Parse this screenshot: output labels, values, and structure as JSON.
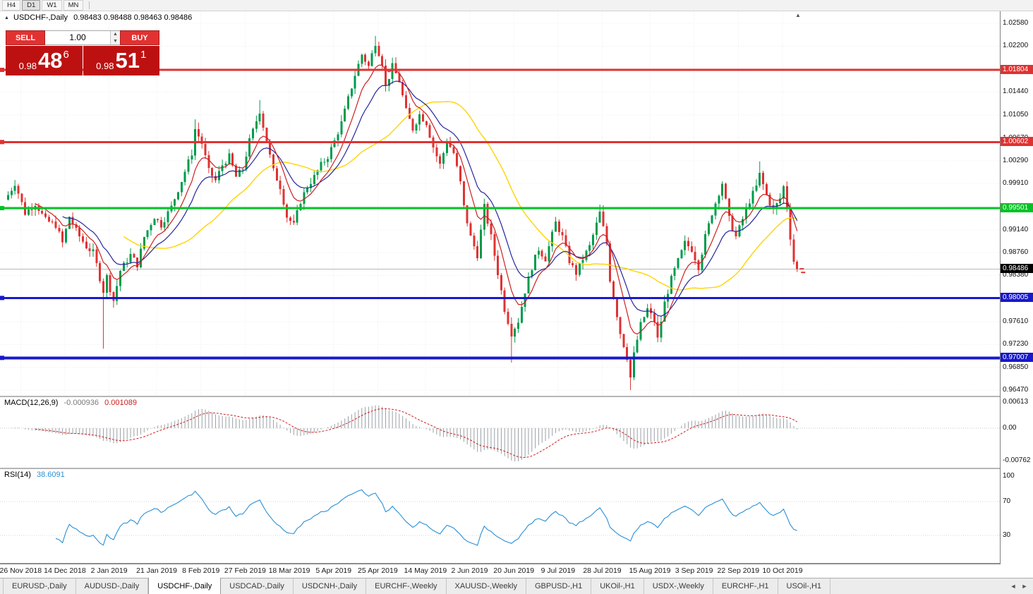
{
  "toolbar": {
    "timeframes": [
      {
        "label": "H4",
        "active": false
      },
      {
        "label": "D1",
        "active": true
      },
      {
        "label": "W1",
        "active": false
      },
      {
        "label": "MN",
        "active": false
      }
    ]
  },
  "chart": {
    "collapse_icon": "▲",
    "title": "USDCHF-,Daily",
    "ohlc": "0.98483 0.98488 0.98463 0.98486",
    "shift_marker": "▲"
  },
  "trade_panel": {
    "sell_label": "SELL",
    "buy_label": "BUY",
    "volume": "1.00",
    "spinner_up": "▲",
    "spinner_down": "▼",
    "sell_price": {
      "prefix": "0.98",
      "big": "48",
      "sup": "6"
    },
    "buy_price": {
      "prefix": "0.98",
      "big": "51",
      "sup": "1"
    }
  },
  "chart_data": {
    "type": "candlestick",
    "symbol": "USDCHF-",
    "period": "Daily",
    "colors": {
      "bull": "#009b4c",
      "bear": "#e03232",
      "ma_fast_red": "#cc2020",
      "ma_mid_blue": "#26269d",
      "ma_slow_yellow": "#ffd400",
      "macd_hist": "#9aa0a6",
      "macd_signal": "#cc2020",
      "rsi_line": "#2a8fd6",
      "bid_line": "#b8b8b8"
    },
    "y_axis": {
      "top": 1.0258,
      "bottom": 0.9647,
      "ticks": [
        "1.02580",
        "1.02200",
        "1.01440",
        "1.01050",
        "1.00670",
        "1.00290",
        "0.99910",
        "0.99140",
        "0.98760",
        "0.98380",
        "0.97610",
        "0.97230",
        "0.96850",
        "0.96470"
      ],
      "grid": [
        1.0258,
        1.022,
        1.0182,
        1.0144,
        1.0105,
        1.0067,
        1.0029,
        0.9991,
        0.9953,
        0.9914,
        0.9876,
        0.9838,
        0.98,
        0.9761,
        0.9723,
        0.9685,
        0.9647
      ]
    },
    "x_labels": [
      "26 Nov 2018",
      "14 Dec 2018",
      "2 Jan 2019",
      "21 Jan 2019",
      "8 Feb 2019",
      "27 Feb 2019",
      "18 Mar 2019",
      "5 Apr 2019",
      "25 Apr 2019",
      "14 May 2019",
      "2 Jun 2019",
      "20 Jun 2019",
      "9 Jul 2019",
      "28 Jul 2019",
      "15 Aug 2019",
      "3 Sep 2019",
      "22 Sep 2019",
      "10 Oct 2019"
    ],
    "candle_count": 233,
    "last_close": 0.98486,
    "price_path": [
      [
        0,
        0.9972
      ],
      [
        2,
        0.9992
      ],
      [
        5,
        0.9942
      ],
      [
        8,
        0.9958
      ],
      [
        11,
        0.993
      ],
      [
        14,
        0.9922
      ],
      [
        16,
        0.9892
      ],
      [
        18,
        0.9936
      ],
      [
        20,
        0.9912
      ],
      [
        23,
        0.9886
      ],
      [
        25,
        0.9876
      ],
      [
        26,
        0.9856
      ],
      [
        28,
        0.9812
      ],
      [
        29,
        0.9836
      ],
      [
        31,
        0.9796
      ],
      [
        33,
        0.9846
      ],
      [
        36,
        0.9872
      ],
      [
        38,
        0.9856
      ],
      [
        40,
        0.9902
      ],
      [
        43,
        0.9936
      ],
      [
        45,
        0.9922
      ],
      [
        48,
        0.9952
      ],
      [
        51,
        0.9996
      ],
      [
        54,
        1.0042
      ],
      [
        55,
        1.0082
      ],
      [
        57,
        1.0058
      ],
      [
        59,
        1.0012
      ],
      [
        61,
        0.9996
      ],
      [
        63,
        1.0022
      ],
      [
        65,
        1.0036
      ],
      [
        67,
        1.0002
      ],
      [
        69,
        1.0016
      ],
      [
        71,
        1.0062
      ],
      [
        74,
        1.0112
      ],
      [
        76,
        1.0062
      ],
      [
        78,
        1.0012
      ],
      [
        80,
        0.9986
      ],
      [
        82,
        0.9936
      ],
      [
        84,
        0.9922
      ],
      [
        86,
        0.9962
      ],
      [
        88,
        0.9986
      ],
      [
        90,
        1.0002
      ],
      [
        92,
        1.0022
      ],
      [
        94,
        1.0036
      ],
      [
        96,
        1.0062
      ],
      [
        98,
        1.0092
      ],
      [
        100,
        1.0132
      ],
      [
        102,
        1.0172
      ],
      [
        104,
        1.0206
      ],
      [
        106,
        1.0186
      ],
      [
        108,
        1.0226
      ],
      [
        110,
        1.0192
      ],
      [
        111,
        1.0152
      ],
      [
        113,
        1.0186
      ],
      [
        115,
        1.0162
      ],
      [
        117,
        1.0112
      ],
      [
        119,
        1.0082
      ],
      [
        121,
        1.0106
      ],
      [
        123,
        1.0092
      ],
      [
        125,
        1.0052
      ],
      [
        127,
        1.0022
      ],
      [
        129,
        1.0062
      ],
      [
        131,
        1.0042
      ],
      [
        133,
        0.9992
      ],
      [
        134,
        0.9952
      ],
      [
        136,
        0.9902
      ],
      [
        138,
        0.9872
      ],
      [
        140,
        0.9952
      ],
      [
        142,
        0.9902
      ],
      [
        144,
        0.9842
      ],
      [
        146,
        0.9782
      ],
      [
        148,
        0.9742
      ],
      [
        150,
        0.9762
      ],
      [
        152,
        0.9812
      ],
      [
        154,
        0.9852
      ],
      [
        156,
        0.9882
      ],
      [
        158,
        0.9866
      ],
      [
        161,
        0.9926
      ],
      [
        163,
        0.9902
      ],
      [
        165,
        0.9862
      ],
      [
        167,
        0.9842
      ],
      [
        169,
        0.9866
      ],
      [
        171,
        0.9886
      ],
      [
        174,
        0.9942
      ],
      [
        176,
        0.9892
      ],
      [
        177,
        0.9832
      ],
      [
        179,
        0.9772
      ],
      [
        180,
        0.9742
      ],
      [
        182,
        0.9702
      ],
      [
        183,
        0.9668
      ],
      [
        184,
        0.9706
      ],
      [
        186,
        0.9756
      ],
      [
        188,
        0.9782
      ],
      [
        190,
        0.9762
      ],
      [
        191,
        0.9732
      ],
      [
        193,
        0.9792
      ],
      [
        195,
        0.9832
      ],
      [
        197,
        0.9862
      ],
      [
        199,
        0.9892
      ],
      [
        201,
        0.9882
      ],
      [
        203,
        0.9852
      ],
      [
        205,
        0.9902
      ],
      [
        207,
        0.9942
      ],
      [
        209,
        0.9976
      ],
      [
        210,
        0.9992
      ],
      [
        212,
        0.9932
      ],
      [
        214,
        0.9902
      ],
      [
        216,
        0.9932
      ],
      [
        218,
        0.9962
      ],
      [
        220,
        0.9986
      ],
      [
        221,
        1.0006
      ],
      [
        223,
        0.9972
      ],
      [
        225,
        0.9946
      ],
      [
        227,
        0.9966
      ],
      [
        228,
        0.9986
      ],
      [
        229,
        0.9952
      ],
      [
        230,
        0.9902
      ],
      [
        231,
        0.9862
      ],
      [
        232,
        0.98486
      ]
    ],
    "wick_extremes": [
      [
        28,
        "low",
        0.9716
      ],
      [
        55,
        "high",
        1.0098
      ],
      [
        74,
        "high",
        1.013
      ],
      [
        108,
        "high",
        1.0237
      ],
      [
        148,
        "low",
        0.9693
      ],
      [
        174,
        "high",
        0.9956
      ],
      [
        183,
        "low",
        0.9647
      ],
      [
        221,
        "high",
        1.0028
      ]
    ],
    "h_lines": [
      {
        "price": 1.01804,
        "label": "1.01804",
        "color": "#e03232",
        "width": 3
      },
      {
        "price": 1.00602,
        "label": "1.00602",
        "color": "#e03232",
        "width": 3
      },
      {
        "price": 0.99501,
        "label": "0.99501",
        "color": "#00c323",
        "width": 3
      },
      {
        "price": 0.98005,
        "label": "0.98005",
        "color": "#1818cc",
        "width": 3
      },
      {
        "price": 0.97007,
        "label": "0.97007",
        "color": "#1818cc",
        "width": 4
      }
    ],
    "current_price": {
      "value": 0.98486,
      "label": "0.98486",
      "badge_color": "#000000"
    },
    "indicators": {
      "macd": {
        "name": "MACD(12,26,9)",
        "value_main": "-0.000936",
        "value_signal": "0.001089",
        "params": {
          "fast": 12,
          "slow": 26,
          "signal": 9
        },
        "scale": [
          {
            "label": "0.00613",
            "value": 0.00613
          },
          {
            "label": "0.00",
            "value": 0
          },
          {
            "label": "-0.00762",
            "value": -0.00762
          }
        ]
      },
      "rsi": {
        "name": "RSI(14)",
        "value": "38.6091",
        "period": 14,
        "levels": [
          70,
          30
        ],
        "scale": [
          {
            "label": "100",
            "value": 100
          },
          {
            "label": "70",
            "value": 70
          },
          {
            "label": "30",
            "value": 30
          }
        ]
      }
    }
  },
  "tabs": {
    "items": [
      {
        "label": "EURUSD-,Daily",
        "active": false
      },
      {
        "label": "AUDUSD-,Daily",
        "active": false
      },
      {
        "label": "USDCHF-,Daily",
        "active": true
      },
      {
        "label": "USDCAD-,Daily",
        "active": false
      },
      {
        "label": "USDCNH-,Daily",
        "active": false
      },
      {
        "label": "EURCHF-,Weekly",
        "active": false
      },
      {
        "label": "XAUUSD-,Weekly",
        "active": false
      },
      {
        "label": "GBPUSD-,H1",
        "active": false
      },
      {
        "label": "UKOil-,H1",
        "active": false
      },
      {
        "label": "USDX-,Weekly",
        "active": false
      },
      {
        "label": "EURCHF-,H1",
        "active": false
      },
      {
        "label": "USOil-,H1",
        "active": false
      }
    ],
    "scroll_left": "◄",
    "scroll_right": "►"
  }
}
